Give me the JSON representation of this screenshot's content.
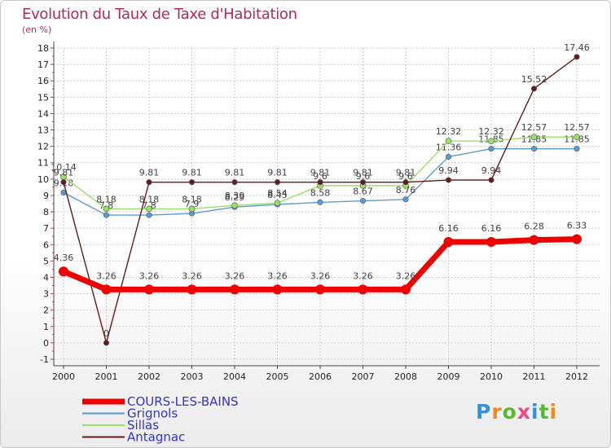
{
  "header": {
    "title": "Evolution du Taux de Taxe d'Habitation",
    "subtitle": "(en %)"
  },
  "logo": {
    "text": "Proxiti"
  },
  "colors": {
    "COURS-LES-BAINS": "#ee0000",
    "Grignols": "#5b9bd5",
    "Sillas": "#99e066",
    "Antagnac": "#661a1a",
    "grid": "#cccccc",
    "axis": "#444444"
  },
  "chart_data": {
    "type": "line",
    "title": "Evolution du Taux de Taxe d'Habitation",
    "ylabel": "(en %)",
    "xlabel": "",
    "x": [
      "2000",
      "2001",
      "2002",
      "2003",
      "2004",
      "2005",
      "2006",
      "2007",
      "2008",
      "2009",
      "2010",
      "2011",
      "2012"
    ],
    "ylim": [
      -1,
      18
    ],
    "yticks": [
      -1,
      0,
      1,
      2,
      3,
      4,
      5,
      6,
      7,
      8,
      9,
      10,
      11,
      12,
      13,
      14,
      15,
      16,
      17,
      18
    ],
    "grid": true,
    "legend": "bottom-left",
    "series": [
      {
        "name": "COURS-LES-BAINS",
        "values": [
          4.36,
          3.26,
          3.26,
          3.26,
          3.26,
          3.26,
          3.26,
          3.26,
          3.26,
          6.16,
          6.16,
          6.28,
          6.33
        ],
        "labels": [
          "4.36",
          "3.26",
          "3.26",
          "3.26",
          "3.26",
          "3.26",
          "3.26",
          "3.26",
          "3.26",
          "6.16",
          "6.16",
          "6.28",
          "6.33"
        ]
      },
      {
        "name": "Grignols",
        "values": [
          9.18,
          7.8,
          7.8,
          7.9,
          8.29,
          8.45,
          8.58,
          8.67,
          8.76,
          11.36,
          11.85,
          11.85,
          11.85
        ],
        "labels": [
          "9.18",
          "7.8",
          "7.8",
          "7.9",
          "8.29",
          "8.45",
          "8.58",
          "8.67",
          "8.76",
          "11.36",
          "11.85",
          "11.85",
          "11.85"
        ]
      },
      {
        "name": "Sillas",
        "values": [
          10.14,
          8.18,
          8.18,
          8.18,
          8.39,
          8.54,
          9.6,
          9.6,
          9.6,
          12.32,
          12.32,
          12.57,
          12.57
        ],
        "labels": [
          "10.14",
          "8.18",
          "8.18",
          "8.18",
          "8.39",
          "8.54",
          "9.6",
          "9.6",
          "9.6",
          "12.32",
          "12.32",
          "12.57",
          "12.57"
        ]
      },
      {
        "name": "Antagnac",
        "values": [
          9.81,
          0,
          9.81,
          9.81,
          9.81,
          9.81,
          9.81,
          9.81,
          9.81,
          9.94,
          9.94,
          15.52,
          17.46
        ],
        "labels": [
          "9.81",
          "0",
          "9.81",
          "9.81",
          "9.81",
          "9.81",
          "9.81",
          "9.81",
          "9.81",
          "9.94",
          "9.94",
          "15.52",
          "17.46"
        ]
      }
    ]
  }
}
